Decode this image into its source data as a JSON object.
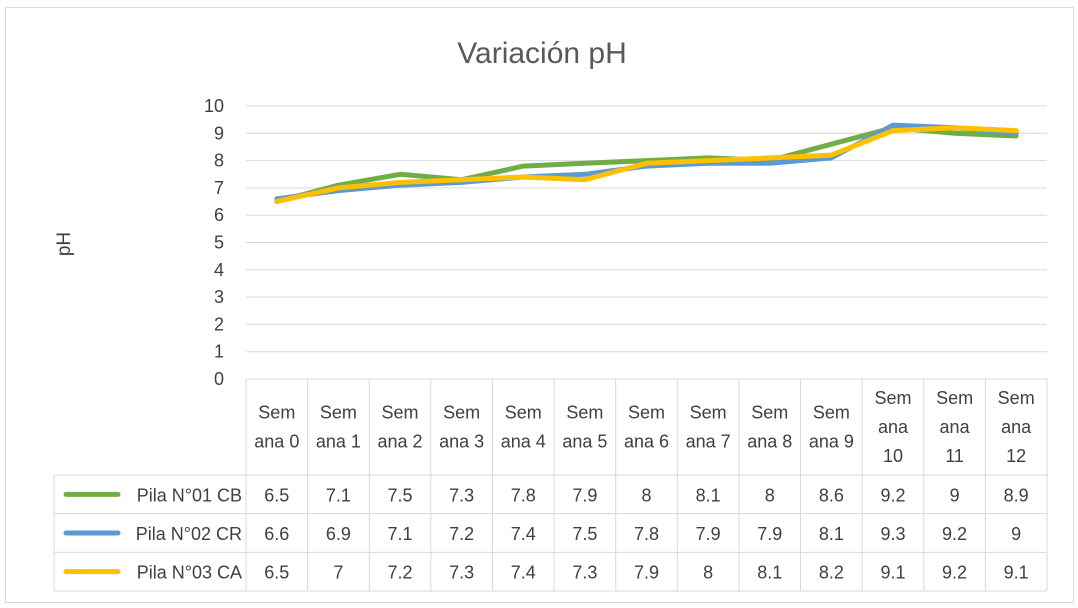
{
  "chart_data": {
    "type": "line",
    "title": "Variación pH",
    "ylabel": "pH",
    "xlabel": "",
    "ylim": [
      0,
      10
    ],
    "yticks": [
      0,
      1,
      2,
      3,
      4,
      5,
      6,
      7,
      8,
      9,
      10
    ],
    "grid": true,
    "legend": "data-table",
    "categories": [
      "Semana 0",
      "Semana 1",
      "Semana 2",
      "Semana 3",
      "Semana 4",
      "Semana 5",
      "Semana 6",
      "Semana 7",
      "Semana 8",
      "Semana 9",
      "Semana 10",
      "Semana 11",
      "Semana 12"
    ],
    "series": [
      {
        "name": "Pila N°01 CB",
        "color": "#70ad47",
        "values": [
          6.5,
          7.1,
          7.5,
          7.3,
          7.8,
          7.9,
          8,
          8.1,
          8,
          8.6,
          9.2,
          9,
          8.9
        ]
      },
      {
        "name": "Pila N°02 CR",
        "color": "#5b9bd5",
        "values": [
          6.6,
          6.9,
          7.1,
          7.2,
          7.4,
          7.5,
          7.8,
          7.9,
          7.9,
          8.1,
          9.3,
          9.2,
          9
        ]
      },
      {
        "name": "Pila N°03 CA",
        "color": "#ffc000",
        "values": [
          6.5,
          7,
          7.2,
          7.3,
          7.4,
          7.3,
          7.9,
          8,
          8.1,
          8.2,
          9.1,
          9.2,
          9.1
        ]
      }
    ]
  }
}
